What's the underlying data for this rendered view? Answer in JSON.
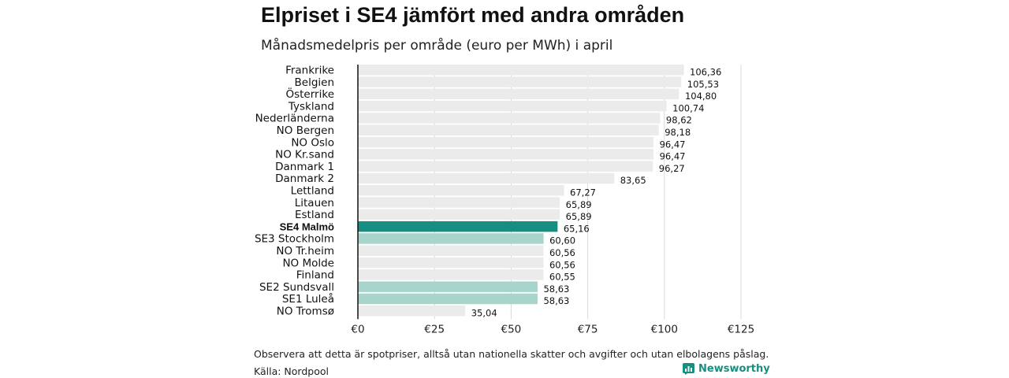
{
  "title": "Elpriset i SE4 jämfört med andra områden",
  "subtitle": "Månadsmedelpris per område (euro per MWh) i april",
  "note": "Observera att detta är spotpriser, alltså utan nationella skatter och avgifter och utan elbolagens påslag.",
  "source": "Källa: Nordpool",
  "brand": "Newsworthy",
  "chart_data": {
    "type": "bar",
    "orientation": "horizontal",
    "categories": [
      "Frankrike",
      "Belgien",
      "Österrike",
      "Tyskland",
      "Nederländerna",
      "NO Bergen",
      "NO Oslo",
      "NO Kr.sand",
      "Danmark 1",
      "Danmark 2",
      "Lettland",
      "Litauen",
      "Estland",
      "SE4 Malmö",
      "SE3 Stockholm",
      "NO Tr.heim",
      "NO Molde",
      "Finland",
      "SE2 Sundsvall",
      "SE1 Luleå",
      "NO Tromsø"
    ],
    "values": [
      106.36,
      105.53,
      104.8,
      100.74,
      98.62,
      98.18,
      96.47,
      96.47,
      96.27,
      83.65,
      67.27,
      65.89,
      65.89,
      65.16,
      60.6,
      60.56,
      60.56,
      60.55,
      58.63,
      58.63,
      35.04
    ],
    "value_labels": [
      "106,36",
      "105,53",
      "104,80",
      "100,74",
      "98,62",
      "98,18",
      "96,47",
      "96,47",
      "96,27",
      "83,65",
      "67,27",
      "65,89",
      "65,89",
      "65,16",
      "60,60",
      "60,56",
      "60,56",
      "60,55",
      "58,63",
      "58,63",
      "35,04"
    ],
    "highlight": [
      "SE4 Malmö"
    ],
    "swedish_areas": [
      "SE3 Stockholm",
      "SE2 Sundsvall",
      "SE1 Luleå"
    ],
    "x_ticks": [
      0,
      25,
      50,
      75,
      100,
      125
    ],
    "x_tick_labels": [
      "€0",
      "€25",
      "€50",
      "€75",
      "€100",
      "€125"
    ],
    "xlim": [
      0,
      125
    ],
    "grid": true,
    "colors": {
      "default": "#ebebeb",
      "highlight": "#168f82",
      "swedish": "#a8d5cb",
      "grid": "#d9d9d9",
      "axis": "#111111"
    }
  }
}
